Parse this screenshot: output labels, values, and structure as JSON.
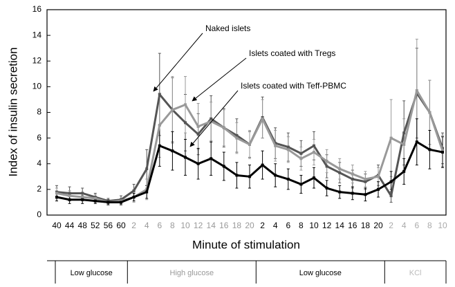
{
  "chart_data": {
    "type": "line",
    "ylabel": "Index of insulin secretion",
    "xlabel": "Minute of stimulation",
    "categories": [
      "40",
      "44",
      "48",
      "52",
      "56",
      "60",
      "2",
      "4",
      "6",
      "8",
      "10",
      "12",
      "14",
      "16",
      "18",
      "20",
      "2",
      "4",
      "6",
      "8",
      "10",
      "12",
      "14",
      "16",
      "18",
      "20",
      "2",
      "4",
      "6",
      "8",
      "10"
    ],
    "category_colors": [
      "#000",
      "#000",
      "#000",
      "#000",
      "#000",
      "#000",
      "#999",
      "#999",
      "#999",
      "#999",
      "#999",
      "#999",
      "#999",
      "#999",
      "#999",
      "#999",
      "#000",
      "#000",
      "#000",
      "#000",
      "#000",
      "#000",
      "#000",
      "#000",
      "#000",
      "#000",
      "#aaa",
      "#aaa",
      "#aaa",
      "#aaa",
      "#aaa"
    ],
    "phases": [
      {
        "label": "Low glucose",
        "color": "#000"
      },
      {
        "label": "High glucose",
        "color": "#999"
      },
      {
        "label": "Low glucose",
        "color": "#000"
      },
      {
        "label": "KCl",
        "color": "#bbb"
      }
    ],
    "ylim": [
      0,
      16
    ],
    "yticks": [
      0,
      2,
      4,
      6,
      8,
      10,
      12,
      14,
      16
    ],
    "annotations": [
      "Naked islets",
      "Islets coated with Tregs",
      "Islets coated with Teff-PBMC"
    ],
    "series": [
      {
        "name": "Naked islets",
        "color": "#555",
        "values": [
          1.8,
          1.7,
          1.7,
          1.4,
          1.1,
          1.2,
          1.9,
          3.6,
          9.4,
          8.2,
          7.2,
          6.3,
          7.5,
          6.8,
          6.2,
          5.5,
          7.6,
          5.6,
          5.3,
          4.8,
          5.4,
          3.8,
          3.3,
          2.8,
          2.6,
          3.1,
          1.5,
          6.4,
          9.5,
          8.0,
          5.2
        ],
        "errors": [
          0.5,
          0.5,
          0.4,
          0.3,
          0.2,
          0.3,
          0.5,
          1.5,
          3.2,
          2.5,
          2.2,
          1.6,
          1.8,
          1.5,
          1.3,
          1.0,
          1.6,
          1.2,
          1.1,
          1.0,
          1.1,
          0.9,
          0.8,
          0.7,
          0.6,
          0.8,
          0.5,
          2.5,
          3.5,
          2.5,
          1.2
        ]
      },
      {
        "name": "Islets coated with Tregs",
        "color": "#999",
        "values": [
          1.7,
          1.5,
          1.4,
          1.3,
          1.0,
          1.1,
          1.4,
          2.0,
          7.0,
          8.2,
          8.6,
          6.9,
          7.3,
          6.8,
          6.0,
          5.5,
          7.5,
          5.4,
          5.1,
          4.4,
          4.9,
          4.2,
          3.6,
          3.2,
          2.8,
          3.0,
          6.0,
          5.5,
          9.7,
          8.0,
          5.0
        ],
        "errors": [
          0.4,
          0.4,
          0.3,
          0.3,
          0.2,
          0.2,
          0.4,
          0.8,
          2.5,
          2.6,
          2.2,
          1.8,
          1.5,
          1.4,
          1.2,
          1.1,
          1.5,
          1.2,
          1.0,
          0.9,
          1.0,
          0.9,
          0.8,
          0.7,
          0.6,
          0.7,
          3.0,
          2.0,
          4.0,
          2.5,
          1.2
        ]
      },
      {
        "name": "Islets coated with Teff-PBMC",
        "color": "#000",
        "values": [
          1.4,
          1.2,
          1.2,
          1.1,
          1.0,
          1.0,
          1.4,
          1.8,
          5.4,
          5.0,
          4.5,
          4.0,
          4.4,
          3.8,
          3.1,
          3.0,
          3.9,
          3.1,
          2.8,
          2.4,
          2.9,
          2.1,
          1.8,
          1.7,
          1.6,
          2.0,
          2.6,
          3.4,
          5.7,
          5.1,
          4.9
        ],
        "errors": [
          0.3,
          0.3,
          0.3,
          0.2,
          0.2,
          0.2,
          0.3,
          0.5,
          1.6,
          1.5,
          1.4,
          1.2,
          1.3,
          1.1,
          1.0,
          0.9,
          1.1,
          0.9,
          0.8,
          0.7,
          0.8,
          0.6,
          0.5,
          0.5,
          0.5,
          0.6,
          0.8,
          1.0,
          1.8,
          1.5,
          1.2
        ]
      }
    ]
  }
}
